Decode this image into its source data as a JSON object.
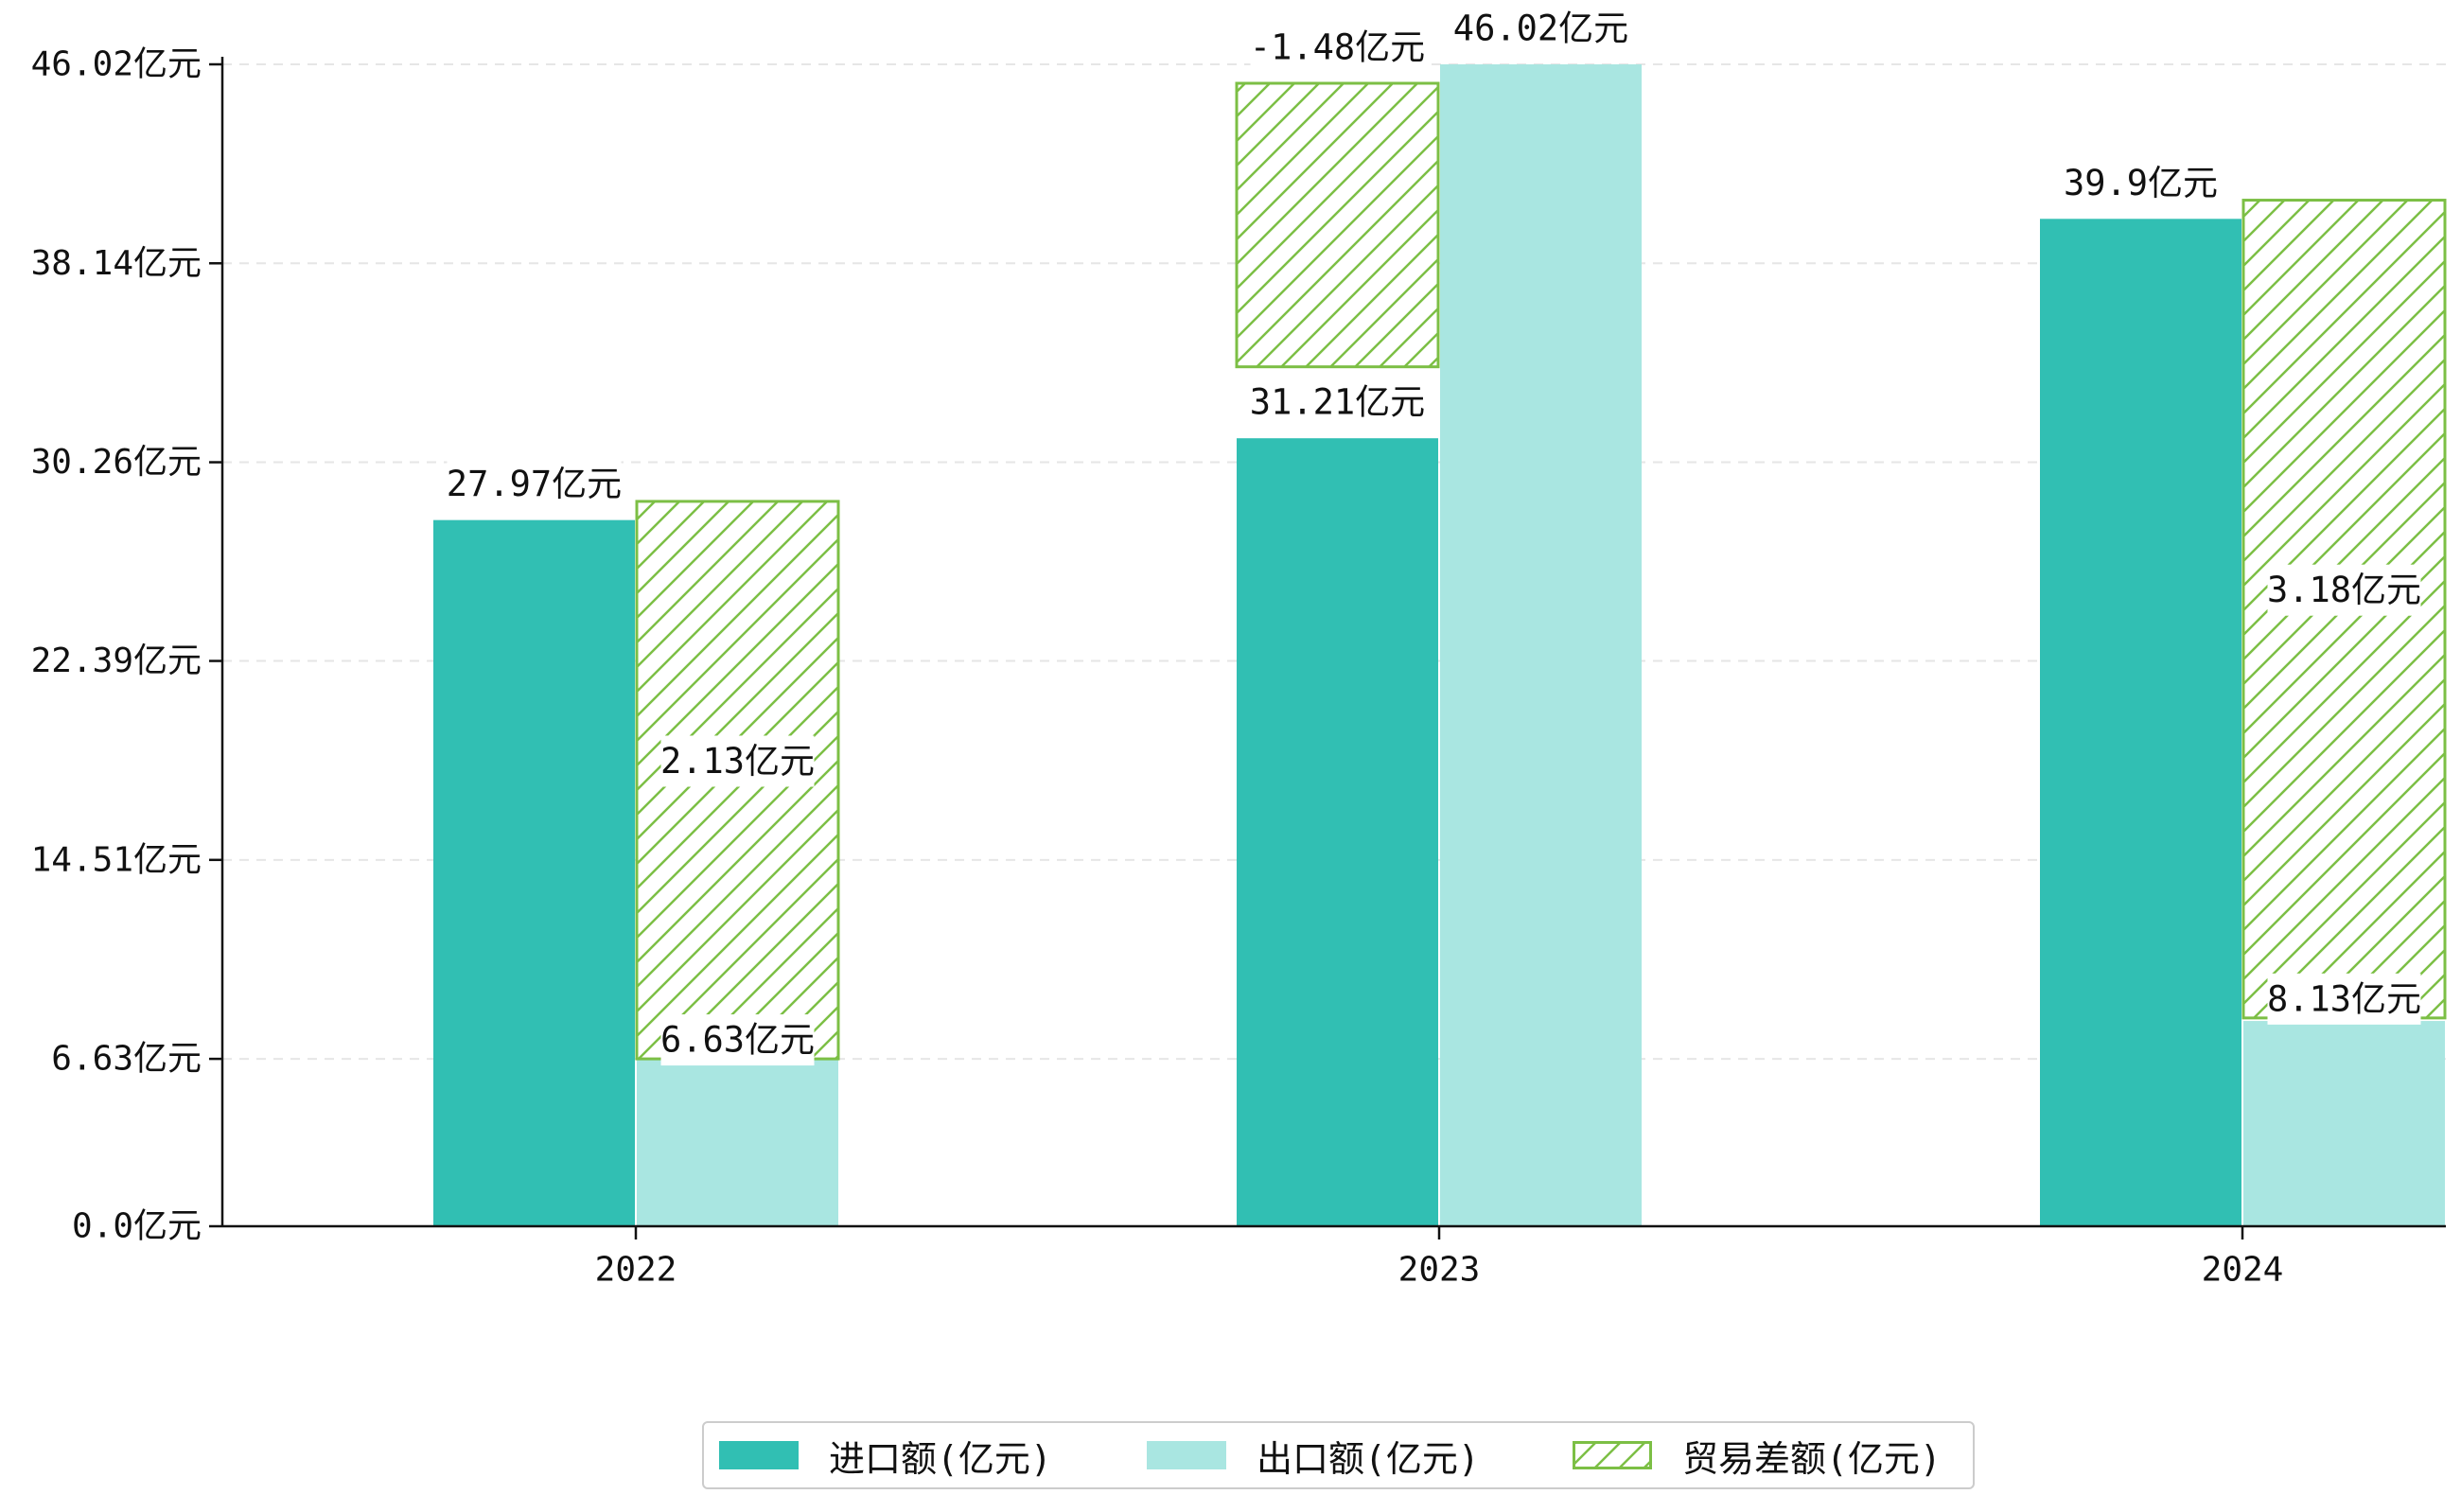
{
  "chart_data": {
    "type": "bar",
    "categories": [
      "2022",
      "2023",
      "2024"
    ],
    "series": [
      {
        "name": "进口额(亿元)",
        "values": [
          27.97,
          31.21,
          39.9
        ],
        "color": "#31bfb3",
        "labels": [
          "27.97亿元",
          "31.21亿元",
          "39.9亿元"
        ]
      },
      {
        "name": "出口额(亿元)",
        "values": [
          6.63,
          46.02,
          8.13
        ],
        "color": "#a9e6e1",
        "labels": [
          "6.63亿元",
          "46.02亿元",
          "8.13亿元"
        ]
      },
      {
        "name": "贸易差额(亿元)",
        "values": [
          2.13,
          -1.48,
          3.18
        ],
        "color": "#7cbf45",
        "hatch": true,
        "labels": [
          "2.13亿元",
          "-1.48亿元",
          "3.18亿元"
        ]
      }
    ],
    "trade_balance_spans": [
      {
        "category": "2022",
        "from": 6.63,
        "to": 28.71
      },
      {
        "category": "2023",
        "from": 34.04,
        "to": 45.27
      },
      {
        "category": "2024",
        "from": 8.25,
        "to": 40.64
      }
    ],
    "yticks": [
      0.0,
      6.63,
      14.51,
      22.39,
      30.26,
      38.14,
      46.02
    ],
    "ytick_labels": [
      "0.0亿元",
      "6.63亿元",
      "14.51亿元",
      "22.39亿元",
      "30.26亿元",
      "38.14亿元",
      "46.02亿元"
    ],
    "ylim": [
      0,
      47.2
    ],
    "title": "",
    "xlabel": "",
    "ylabel": "",
    "grid": "horizontal-dashed",
    "legend_position": "bottom-center"
  }
}
